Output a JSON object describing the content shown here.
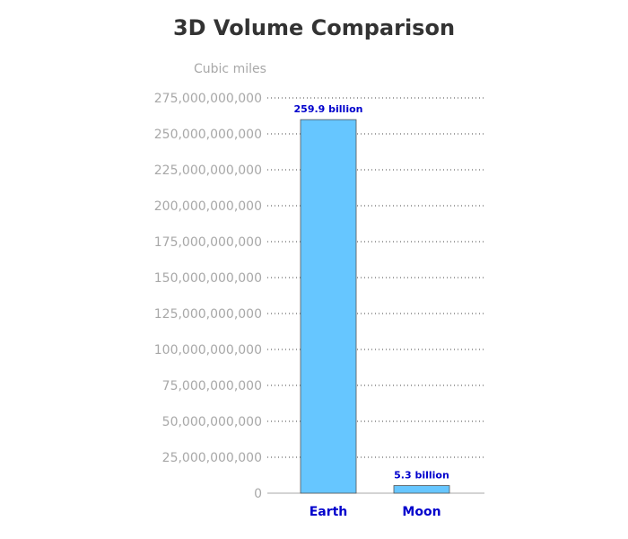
{
  "chart_data": {
    "type": "bar",
    "title": "3D Volume Comparison",
    "ylabel": "Cubic miles",
    "xlabel": "",
    "categories": [
      "Earth",
      "Moon"
    ],
    "values": [
      259900000000,
      5300000000
    ],
    "data_labels": [
      "259.9 billion",
      "5.3 billion"
    ],
    "ylim": [
      0,
      275000000000
    ],
    "yticks": [
      0,
      25000000000,
      50000000000,
      75000000000,
      100000000000,
      125000000000,
      150000000000,
      175000000000,
      200000000000,
      225000000000,
      250000000000,
      275000000000
    ],
    "ytick_labels": [
      "0",
      "25,000,000,000",
      "50,000,000,000",
      "75,000,000,000",
      "100,000,000,000",
      "125,000,000,000",
      "150,000,000,000",
      "175,000,000,000",
      "200,000,000,000",
      "225,000,000,000",
      "250,000,000,000",
      "275,000,000,000"
    ],
    "grid": true,
    "legend": "none",
    "bar_color": "#66c6ff",
    "label_color": "#0000cc",
    "axis_text_color": "#a8a8a8",
    "title_color": "#333333"
  }
}
